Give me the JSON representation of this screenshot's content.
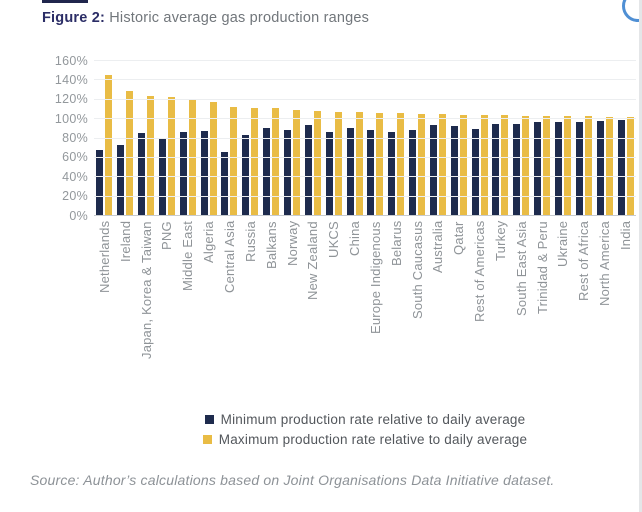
{
  "page": {
    "figure_label": "Figure 2:",
    "figure_title": " Historic average gas production ranges",
    "source": "Source: Author’s calculations based on Joint Organisations Data Initiative dataset."
  },
  "colors": {
    "navy": "#1e2b4d",
    "gold": "#e9bc45",
    "title_navy": "#2b2d66",
    "axis_text": "#93989c",
    "gridline": "#eceef0"
  },
  "chart_data": {
    "type": "bar",
    "title": "Historic average gas production ranges",
    "categories": [
      "Netherlands",
      "Ireland",
      "Japan, Korea & Taiwan",
      "PNG",
      "Middle East",
      "Algeria",
      "Central Asia",
      "Russia",
      "Balkans",
      "Norway",
      "New Zealand",
      "UKCS",
      "China",
      "Europe Indigenous",
      "Belarus",
      "South Caucasus",
      "Australia",
      "Qatar",
      "Rest of Americas",
      "Turkey",
      "South East Asia",
      "Trinidad & Peru",
      "Ukraine",
      "Rest of Africa",
      "North America",
      "India"
    ],
    "series": [
      {
        "name": "Minimum production rate relative to daily average",
        "color": "#1e2b4d",
        "values": [
          67,
          72,
          85,
          80,
          86,
          87,
          65,
          83,
          90,
          88,
          93,
          86,
          90,
          88,
          86,
          88,
          93,
          92,
          89,
          94,
          94,
          96,
          96,
          96,
          97,
          98
        ]
      },
      {
        "name": "Maximum production rate relative to daily average",
        "color": "#e9bc45",
        "values": [
          145,
          128,
          123,
          122,
          120,
          117,
          112,
          110,
          110,
          108,
          107,
          106,
          106,
          105,
          105,
          104,
          104,
          103,
          103,
          103,
          102,
          102,
          102,
          102,
          101,
          101
        ]
      }
    ],
    "xlabel": "",
    "ylabel": "",
    "ylim": [
      0,
      160
    ],
    "ytick_step": 20,
    "ytick_labels": [
      "0%",
      "20%",
      "40%",
      "60%",
      "80%",
      "100%",
      "120%",
      "140%",
      "160%"
    ],
    "grid": true,
    "legend_position": "bottom"
  }
}
